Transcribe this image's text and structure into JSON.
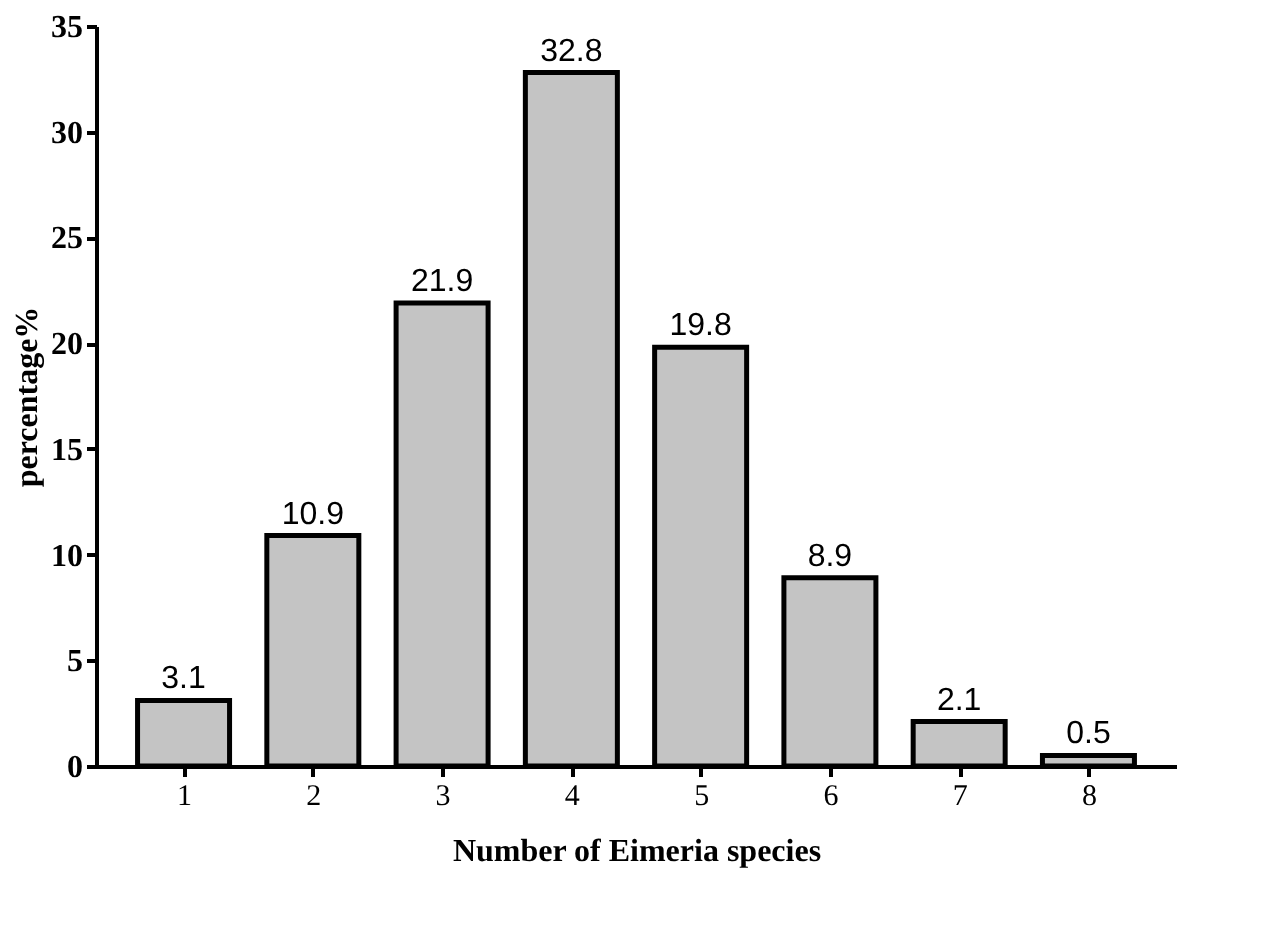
{
  "chart_data": {
    "type": "bar",
    "xlabel": "Number of Eimeria species",
    "ylabel": "percentage%",
    "categories": [
      "1",
      "2",
      "3",
      "4",
      "5",
      "6",
      "7",
      "8"
    ],
    "values": [
      3.1,
      10.9,
      21.9,
      32.8,
      19.8,
      8.9,
      2.1,
      0.5
    ],
    "color": "#c4c4c4",
    "ylim": [
      0,
      35
    ],
    "yticks": [
      0,
      5,
      10,
      15,
      20,
      25,
      30,
      35
    ],
    "data_labels": true,
    "grid": false
  }
}
